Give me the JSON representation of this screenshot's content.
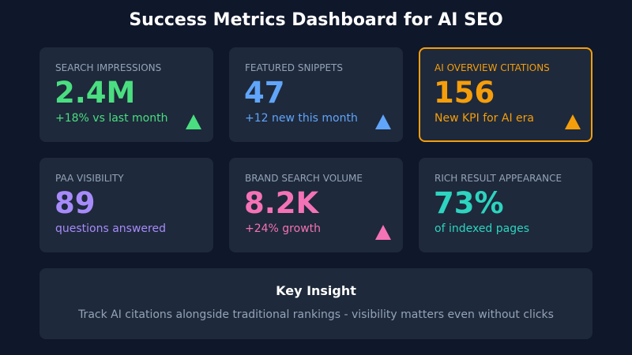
{
  "title": "Success Metrics Dashboard for AI SEO",
  "cards": [
    {
      "label": "SEARCH IMPRESSIONS",
      "value": "2.4M",
      "sub": "+18% vs last month",
      "color": "#4ade80",
      "trend_icon": "triangle-up-icon"
    },
    {
      "label": "FEATURED SNIPPETS",
      "value": "47",
      "sub": "+12 new this month",
      "color": "#60a5fa",
      "trend_icon": "triangle-up-icon"
    },
    {
      "label": "AI OVERVIEW CITATIONS",
      "value": "156",
      "sub": "New KPI for AI era",
      "color": "#f59e0b",
      "trend_icon": "triangle-up-icon",
      "highlighted": true
    },
    {
      "label": "PAA VISIBILITY",
      "value": "89",
      "sub": "questions answered",
      "color": "#a78bfa"
    },
    {
      "label": "BRAND SEARCH VOLUME",
      "value": "8.2K",
      "sub": "+24% growth",
      "color": "#f472b6",
      "trend_icon": "triangle-up-icon"
    },
    {
      "label": "RICH RESULT APPEARANCE",
      "value": "73%",
      "sub": "of indexed pages",
      "color": "#2dd4bf"
    }
  ],
  "insight": {
    "title": "Key Insight",
    "text": "Track AI citations alongside traditional rankings - visibility matters even without clicks"
  }
}
